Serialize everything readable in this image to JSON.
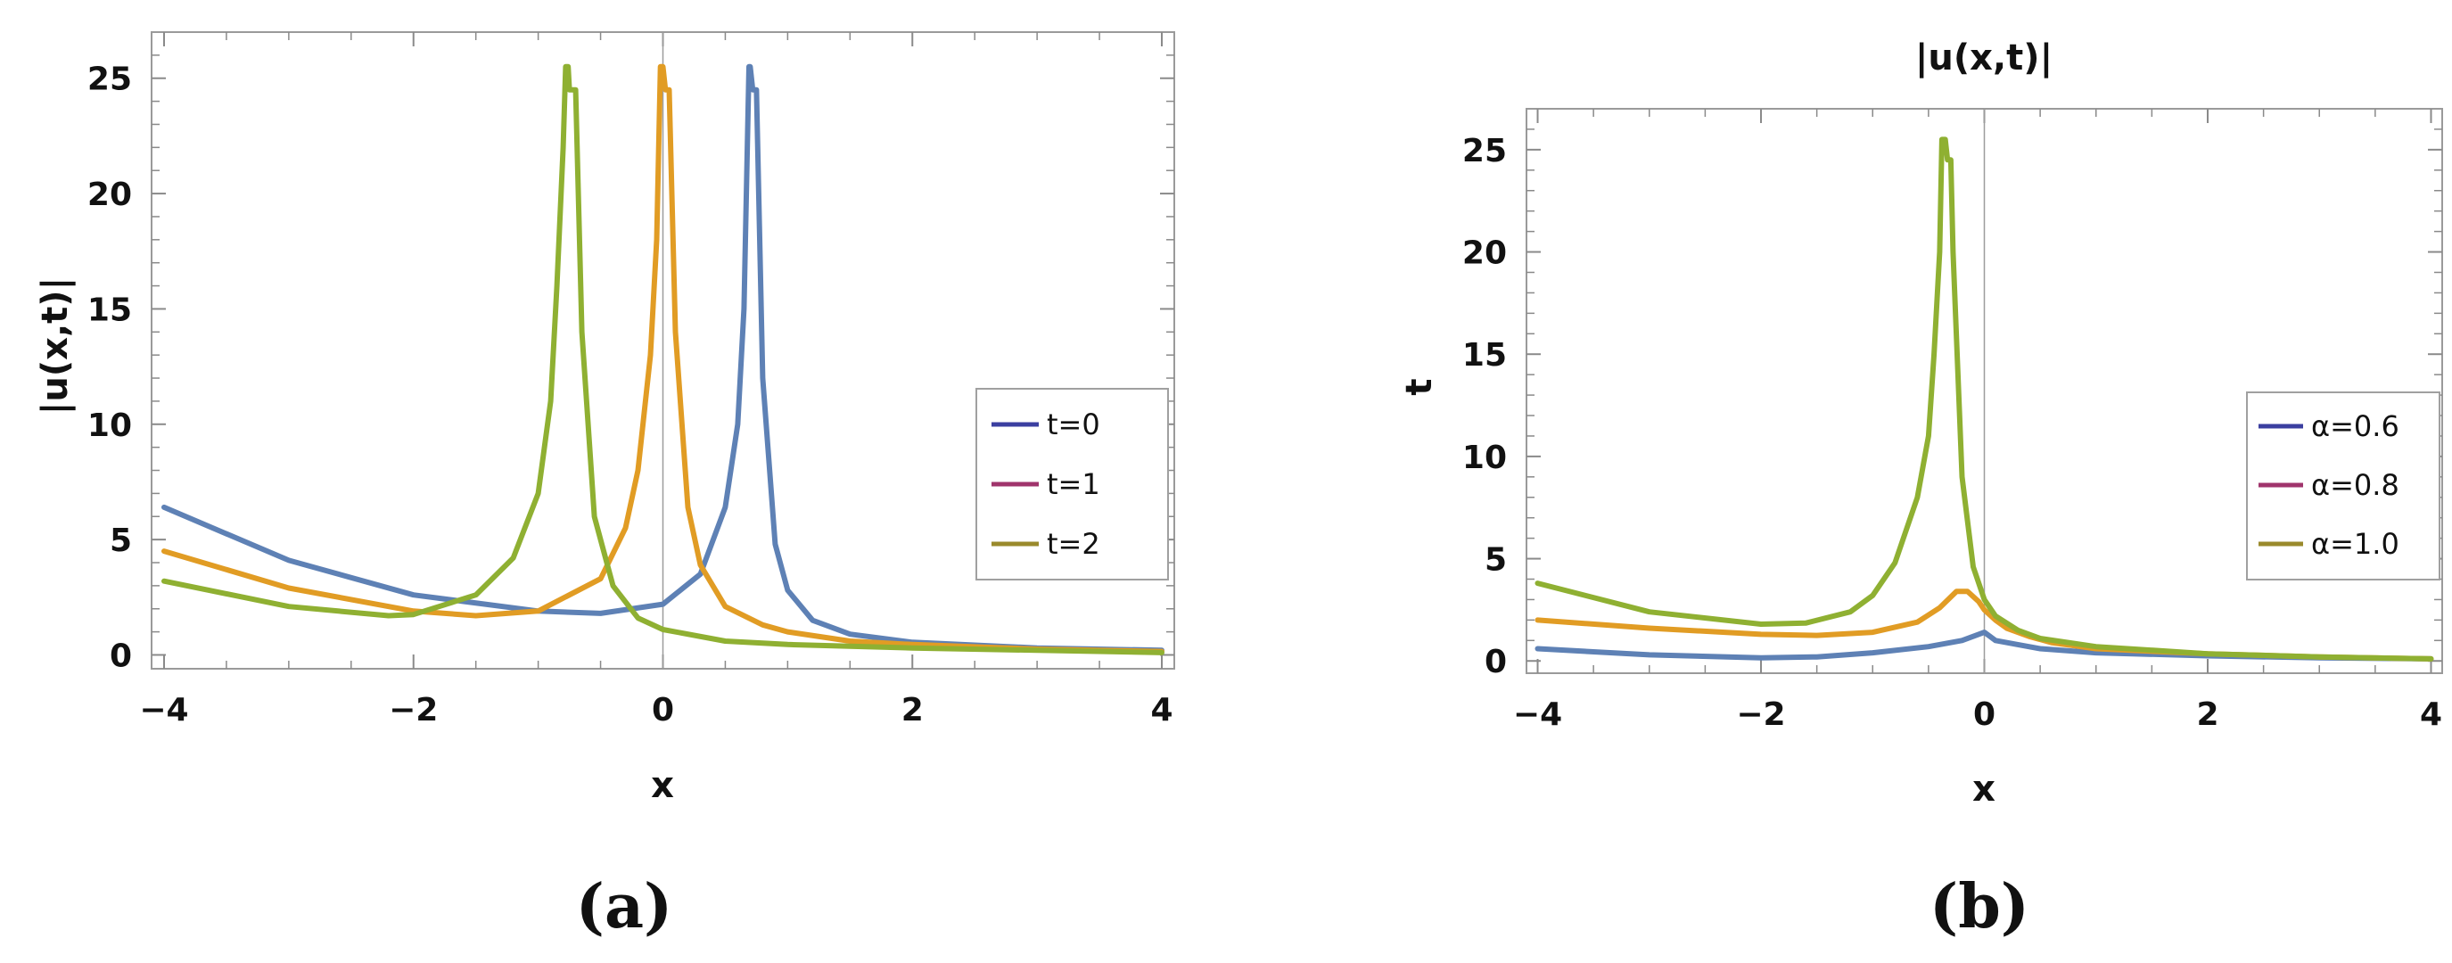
{
  "colors": {
    "blue_curve": "#5E81B5",
    "orange_curve": "#E19C24",
    "green_curve": "#8FB032",
    "legend_blue": "#3B3FA0",
    "legend_magenta": "#A0346C",
    "legend_olive": "#9A8A2C"
  },
  "chart_data": [
    {
      "type": "line",
      "caption": "(a)",
      "title": "",
      "xlabel": "x",
      "ylabel": "|u(x,t)|",
      "xlim": [
        -4.1,
        4.1
      ],
      "ylim": [
        -0.6,
        27.0
      ],
      "xticks": [
        -4,
        -2,
        0,
        2,
        4
      ],
      "xtick_labels": [
        "−4",
        "−2",
        "0",
        "2",
        "4"
      ],
      "yticks": [
        0,
        5,
        10,
        15,
        20,
        25
      ],
      "ytick_labels": [
        "0",
        "5",
        "10",
        "15",
        "20",
        "25"
      ],
      "grid": false,
      "legend_position": "right",
      "legend": [
        {
          "label": "t=0",
          "color": "#3B3FA0"
        },
        {
          "label": "t=1",
          "color": "#A0346C"
        },
        {
          "label": "t=2",
          "color": "#9A8A2C"
        }
      ],
      "series": [
        {
          "color": "#5E81B5",
          "x": [
            -4.0,
            -3.0,
            -2.0,
            -1.0,
            -0.5,
            0.0,
            0.3,
            0.5,
            0.6,
            0.65,
            0.69,
            0.7,
            0.72,
            0.75,
            0.8,
            0.9,
            1.0,
            1.2,
            1.5,
            2.0,
            3.0,
            4.0
          ],
          "y": [
            6.4,
            4.1,
            2.6,
            1.9,
            1.8,
            2.2,
            3.5,
            6.4,
            10.0,
            15.0,
            25.5,
            25.5,
            24.5,
            24.5,
            12.0,
            4.8,
            2.8,
            1.5,
            0.9,
            0.55,
            0.3,
            0.2
          ]
        },
        {
          "color": "#E19C24",
          "x": [
            -4.0,
            -3.0,
            -2.0,
            -1.5,
            -1.0,
            -0.5,
            -0.3,
            -0.2,
            -0.1,
            -0.05,
            -0.02,
            0.0,
            0.02,
            0.05,
            0.1,
            0.2,
            0.3,
            0.5,
            0.8,
            1.0,
            1.5,
            2.0,
            3.0,
            4.0
          ],
          "y": [
            4.5,
            2.9,
            1.9,
            1.7,
            1.9,
            3.3,
            5.5,
            8.0,
            13.0,
            18.0,
            25.5,
            25.5,
            24.5,
            24.5,
            14.0,
            6.4,
            3.9,
            2.1,
            1.3,
            1.0,
            0.6,
            0.45,
            0.25,
            0.15
          ]
        },
        {
          "color": "#8FB032",
          "x": [
            -4.0,
            -3.0,
            -2.2,
            -2.0,
            -1.5,
            -1.2,
            -1.0,
            -0.9,
            -0.85,
            -0.8,
            -0.78,
            -0.76,
            -0.75,
            -0.7,
            -0.65,
            -0.55,
            -0.4,
            -0.2,
            0.0,
            0.5,
            1.0,
            2.0,
            3.0,
            4.0
          ],
          "y": [
            3.2,
            2.1,
            1.7,
            1.75,
            2.6,
            4.2,
            7.0,
            11.0,
            16.0,
            22.0,
            25.5,
            25.5,
            24.5,
            24.5,
            14.0,
            6.0,
            3.0,
            1.6,
            1.1,
            0.6,
            0.45,
            0.3,
            0.2,
            0.1
          ]
        }
      ]
    },
    {
      "type": "line",
      "caption": "(b)",
      "title": "|u(x,t)|",
      "xlabel": "x",
      "ylabel": "t",
      "xlim": [
        -4.1,
        4.1
      ],
      "ylim": [
        -0.6,
        27.0
      ],
      "xticks": [
        -4,
        -2,
        0,
        2,
        4
      ],
      "xtick_labels": [
        "−4",
        "−2",
        "0",
        "2",
        "4"
      ],
      "yticks": [
        0,
        5,
        10,
        15,
        20,
        25
      ],
      "ytick_labels": [
        "0",
        "5",
        "10",
        "15",
        "20",
        "25"
      ],
      "grid": false,
      "legend_position": "right",
      "legend": [
        {
          "label": "α=0.6",
          "color": "#3B3FA0"
        },
        {
          "label": "α=0.8",
          "color": "#A0346C"
        },
        {
          "label": "α=1.0",
          "color": "#9A8A2C"
        }
      ],
      "series": [
        {
          "color": "#5E81B5",
          "x": [
            -4.0,
            -3.0,
            -2.0,
            -1.5,
            -1.0,
            -0.5,
            -0.2,
            0.0,
            0.05,
            0.1,
            0.3,
            0.5,
            1.0,
            2.0,
            3.0,
            4.0
          ],
          "y": [
            0.6,
            0.3,
            0.15,
            0.2,
            0.4,
            0.7,
            1.0,
            1.4,
            1.2,
            1.0,
            0.8,
            0.6,
            0.4,
            0.25,
            0.15,
            0.1
          ]
        },
        {
          "color": "#E19C24",
          "x": [
            -4.0,
            -3.0,
            -2.0,
            -1.5,
            -1.0,
            -0.6,
            -0.4,
            -0.25,
            -0.15,
            -0.05,
            0.0,
            0.1,
            0.2,
            0.4,
            0.6,
            1.0,
            2.0,
            3.0,
            4.0
          ],
          "y": [
            2.0,
            1.6,
            1.3,
            1.25,
            1.4,
            1.9,
            2.6,
            3.4,
            3.4,
            2.9,
            2.5,
            2.0,
            1.6,
            1.2,
            0.9,
            0.6,
            0.35,
            0.2,
            0.1
          ]
        },
        {
          "color": "#8FB032",
          "x": [
            -4.0,
            -3.0,
            -2.0,
            -1.6,
            -1.2,
            -1.0,
            -0.8,
            -0.6,
            -0.5,
            -0.45,
            -0.4,
            -0.38,
            -0.35,
            -0.33,
            -0.3,
            -0.28,
            -0.2,
            -0.1,
            0.0,
            0.1,
            0.3,
            0.5,
            1.0,
            2.0,
            3.0,
            4.0
          ],
          "y": [
            3.8,
            2.4,
            1.8,
            1.85,
            2.4,
            3.2,
            4.8,
            8.0,
            11.0,
            15.0,
            20.0,
            25.5,
            25.5,
            24.5,
            24.5,
            20.0,
            9.0,
            4.6,
            3.0,
            2.2,
            1.5,
            1.1,
            0.7,
            0.35,
            0.2,
            0.1
          ]
        }
      ]
    }
  ]
}
